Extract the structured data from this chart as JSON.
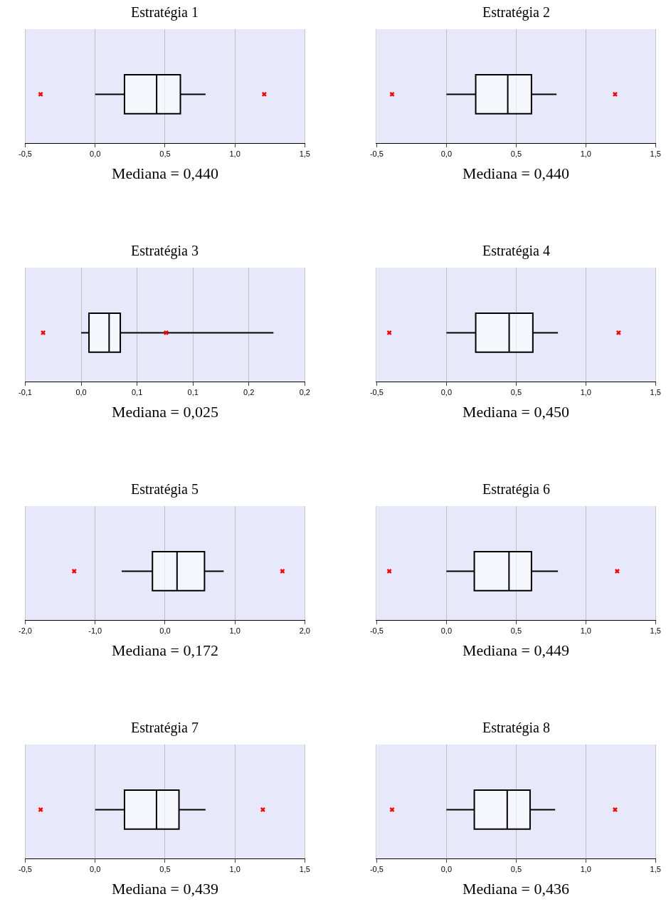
{
  "chart_data": [
    {
      "type": "box",
      "orientation": "horizontal",
      "title": "Estratégia 1",
      "xlabel": "Mediana = 0,440",
      "categories": [
        null
      ],
      "grid": "x",
      "tick_labels": "x",
      "xlim": [
        -0.5,
        1.5
      ],
      "xticks": [
        {
          "value": -0.5,
          "label": "-0,5"
        },
        {
          "value": 0,
          "label": "0,0"
        },
        {
          "value": 0.5,
          "label": "0,5"
        },
        {
          "value": 1.0,
          "label": "1,0"
        },
        {
          "value": 1.5,
          "label": "1,5"
        }
      ],
      "boxes": [
        {
          "low": 0,
          "q1": 0.21,
          "median": 0.44,
          "q3": 0.61,
          "high": 0.79,
          "outliers": [
            -0.39,
            1.21
          ]
        }
      ]
    },
    {
      "type": "box",
      "orientation": "horizontal",
      "title": "Estratégia 2",
      "xlabel": "Mediana = 0,440",
      "categories": [
        null
      ],
      "grid": "x",
      "tick_labels": "x",
      "xlim": [
        -0.5,
        1.5
      ],
      "xticks": [
        {
          "value": -0.5,
          "label": "-0,5"
        },
        {
          "value": 0,
          "label": "0,0"
        },
        {
          "value": 0.5,
          "label": "0,5"
        },
        {
          "value": 1.0,
          "label": "1,0"
        },
        {
          "value": 1.5,
          "label": "1,5"
        }
      ],
      "boxes": [
        {
          "low": 0,
          "q1": 0.21,
          "median": 0.44,
          "q3": 0.61,
          "high": 0.79,
          "outliers": [
            -0.39,
            1.21
          ]
        }
      ]
    },
    {
      "type": "box",
      "orientation": "horizontal",
      "title": "Estratégia 3",
      "xlabel": "Mediana = 0,025",
      "categories": [
        null
      ],
      "grid": "x",
      "tick_labels": "x",
      "xlim": [
        -0.05,
        0.2
      ],
      "xticks": [
        {
          "value": -0.05,
          "label": "-0,1"
        },
        {
          "value": 0,
          "label": "0,0"
        },
        {
          "value": 0.05,
          "label": "0,1"
        },
        {
          "value": 0.1,
          "label": "0,1"
        },
        {
          "value": 0.15,
          "label": "0,2"
        },
        {
          "value": 0.2,
          "label": "0,2"
        }
      ],
      "boxes": [
        {
          "low": 0,
          "q1": 0.007,
          "median": 0.025,
          "q3": 0.035,
          "high": 0.172,
          "outliers": [
            -0.034,
            0.076
          ]
        }
      ]
    },
    {
      "type": "box",
      "orientation": "horizontal",
      "title": "Estratégia 4",
      "xlabel": "Mediana = 0,450",
      "categories": [
        null
      ],
      "grid": "x",
      "tick_labels": "x",
      "xlim": [
        -0.5,
        1.5
      ],
      "xticks": [
        {
          "value": -0.5,
          "label": "-0,5"
        },
        {
          "value": 0,
          "label": "0,0"
        },
        {
          "value": 0.5,
          "label": "0,5"
        },
        {
          "value": 1.0,
          "label": "1,0"
        },
        {
          "value": 1.5,
          "label": "1,5"
        }
      ],
      "boxes": [
        {
          "low": 0,
          "q1": 0.21,
          "median": 0.45,
          "q3": 0.62,
          "high": 0.8,
          "outliers": [
            -0.41,
            1.235
          ]
        }
      ]
    },
    {
      "type": "box",
      "orientation": "horizontal",
      "title": "Estratégia 5",
      "xlabel": "Mediana = 0,172",
      "categories": [
        null
      ],
      "grid": "x",
      "tick_labels": "x",
      "xlim": [
        -2,
        2
      ],
      "xticks": [
        {
          "value": -2,
          "label": "-2,0"
        },
        {
          "value": -1,
          "label": "-1,0"
        },
        {
          "value": 0,
          "label": "0,0"
        },
        {
          "value": 1,
          "label": "1,0"
        },
        {
          "value": 2,
          "label": "2,0"
        }
      ],
      "boxes": [
        {
          "low": -0.62,
          "q1": -0.18,
          "median": 0.172,
          "q3": 0.565,
          "high": 0.84,
          "outliers": [
            -1.3,
            1.68
          ]
        }
      ]
    },
    {
      "type": "box",
      "orientation": "horizontal",
      "title": "Estratégia 6",
      "xlabel": "Mediana = 0,449",
      "categories": [
        null
      ],
      "grid": "x",
      "tick_labels": "x",
      "xlim": [
        -0.5,
        1.5
      ],
      "xticks": [
        {
          "value": -0.5,
          "label": "-0,5"
        },
        {
          "value": 0,
          "label": "0,0"
        },
        {
          "value": 0.5,
          "label": "0,5"
        },
        {
          "value": 1.0,
          "label": "1,0"
        },
        {
          "value": 1.5,
          "label": "1,5"
        }
      ],
      "boxes": [
        {
          "low": 0,
          "q1": 0.2,
          "median": 0.449,
          "q3": 0.61,
          "high": 0.8,
          "outliers": [
            -0.41,
            1.225
          ]
        }
      ]
    },
    {
      "type": "box",
      "orientation": "horizontal",
      "title": "Estratégia 7",
      "xlabel": "Mediana = 0,439",
      "categories": [
        null
      ],
      "grid": "x",
      "tick_labels": "x",
      "xlim": [
        -0.5,
        1.5
      ],
      "xticks": [
        {
          "value": -0.5,
          "label": "-0,5"
        },
        {
          "value": 0,
          "label": "0,0"
        },
        {
          "value": 0.5,
          "label": "0,5"
        },
        {
          "value": 1.0,
          "label": "1,0"
        },
        {
          "value": 1.5,
          "label": "1,5"
        }
      ],
      "boxes": [
        {
          "low": 0,
          "q1": 0.21,
          "median": 0.439,
          "q3": 0.6,
          "high": 0.79,
          "outliers": [
            -0.39,
            1.2
          ]
        }
      ]
    },
    {
      "type": "box",
      "orientation": "horizontal",
      "title": "Estratégia 8",
      "xlabel": "Mediana = 0,436",
      "categories": [
        null
      ],
      "grid": "x",
      "tick_labels": "x",
      "xlim": [
        -0.5,
        1.5
      ],
      "xticks": [
        {
          "value": -0.5,
          "label": "-0,5"
        },
        {
          "value": 0,
          "label": "0,0"
        },
        {
          "value": 0.5,
          "label": "0,5"
        },
        {
          "value": 1.0,
          "label": "1,0"
        },
        {
          "value": 1.5,
          "label": "1,5"
        }
      ],
      "boxes": [
        {
          "low": 0,
          "q1": 0.2,
          "median": 0.436,
          "q3": 0.6,
          "high": 0.78,
          "outliers": [
            -0.39,
            1.21
          ]
        }
      ]
    }
  ]
}
